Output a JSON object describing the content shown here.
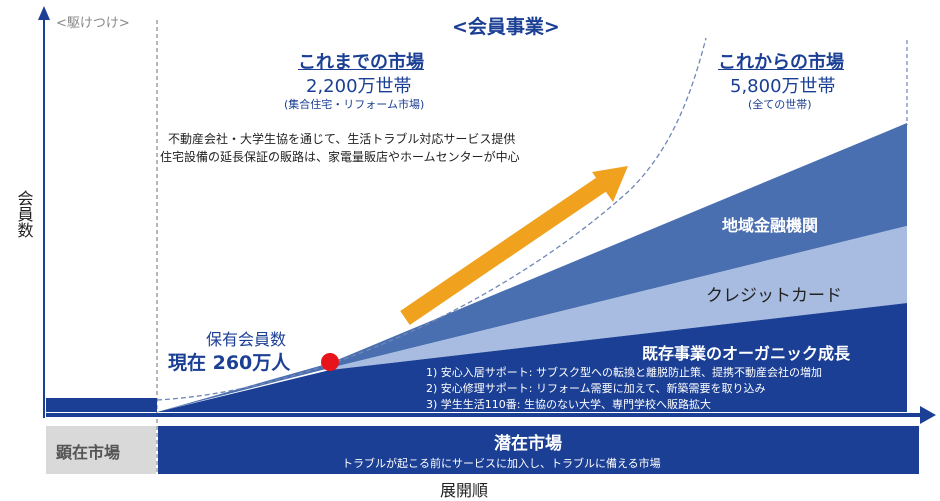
{
  "diagram": {
    "title": "<会員事業>",
    "left_phase_label": "<駆けつけ>",
    "y_axis_label": "会員数",
    "x_axis_label": "展開順",
    "current_market": {
      "title": "これまでの市場",
      "households": "2,200万世帯",
      "note": "(集合住宅・リフォーム市場)"
    },
    "future_market": {
      "title": "これからの市場",
      "households": "5,800万世帯",
      "note": "(全ての世帯)"
    },
    "description_lines": [
      "不動産会社・大学生協を通じて、生活トラブル対応サービス提供",
      "住宅設備の延長保証の販路は、家電量販店やホームセンターが中心"
    ],
    "members_label": "保有会員数",
    "members_current": "現在 260万人",
    "bands": {
      "regional_finance": "地域金融機関",
      "credit_card": "クレジットカード",
      "organic_growth": "既存事業のオーガニック成長"
    },
    "organic_points": [
      "1) 安心入居サポート: サブスク型への転換と離脱防止策、提携不動産会社の増加",
      "2) 安心修理サポート: リフォーム需要に加えて、新築需要を取り込み",
      "3) 学生生活110番: 生協のない大学、専門学校へ販路拡大"
    ],
    "visible_market": "顕在市場",
    "latent_market": {
      "title": "潜在市場",
      "subtitle": "トラブルが起こる前にサービスに加入し、トラブルに備える市場"
    },
    "colors": {
      "navy": "#1b3f94",
      "mid_blue": "#4a6fb0",
      "light_blue": "#a7bce0",
      "arrow_orange": "#f0a11e",
      "marker_red": "#e8141b",
      "gray_box": "#d9d9d9"
    }
  }
}
